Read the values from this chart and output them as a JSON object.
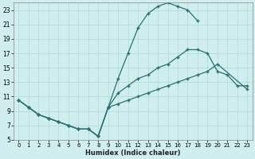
{
  "xlabel": "Humidex (Indice chaleur)",
  "bg_color": "#d0eeee",
  "grid_color": "#b0d8d8",
  "line_color": "#2a7070",
  "xlim": [
    -0.5,
    23.5
  ],
  "ylim": [
    5,
    24
  ],
  "xticks": [
    0,
    1,
    2,
    3,
    4,
    5,
    6,
    7,
    8,
    9,
    10,
    11,
    12,
    13,
    14,
    15,
    16,
    17,
    18,
    19,
    20,
    21,
    22,
    23
  ],
  "yticks": [
    5,
    7,
    9,
    11,
    13,
    15,
    17,
    19,
    21,
    23
  ],
  "line1_x": [
    0,
    1,
    2,
    3,
    4,
    5,
    6,
    7,
    8,
    9,
    10,
    11,
    12,
    13,
    14,
    15,
    16,
    17,
    18
  ],
  "line1_y": [
    10.5,
    9.5,
    8.5,
    8.0,
    7.5,
    7.0,
    6.5,
    6.5,
    5.5,
    9.5,
    13.5,
    17.0,
    20.5,
    22.5,
    23.5,
    24.0,
    23.5,
    23.0,
    21.5
  ],
  "line2_x": [
    0,
    1,
    2,
    3,
    4,
    5,
    6,
    7,
    8,
    9,
    10,
    11,
    12,
    13,
    14,
    15,
    16,
    17,
    18,
    19,
    20,
    21,
    22,
    23
  ],
  "line2_y": [
    10.5,
    9.5,
    8.5,
    8.0,
    7.5,
    7.0,
    6.5,
    6.5,
    5.5,
    9.5,
    11.5,
    12.5,
    13.5,
    14.0,
    15.0,
    15.5,
    16.5,
    17.5,
    17.5,
    17.0,
    14.5,
    14.0,
    12.5,
    12.5
  ],
  "line3_x": [
    0,
    1,
    2,
    3,
    4,
    5,
    6,
    7,
    8,
    9,
    10,
    11,
    12,
    13,
    14,
    15,
    16,
    17,
    18,
    19,
    20,
    23
  ],
  "line3_y": [
    10.5,
    9.5,
    8.5,
    8.0,
    7.5,
    7.0,
    6.5,
    6.5,
    5.5,
    9.5,
    10.0,
    10.5,
    11.0,
    11.5,
    12.0,
    12.5,
    13.0,
    13.5,
    14.0,
    14.5,
    15.5,
    12.0
  ]
}
